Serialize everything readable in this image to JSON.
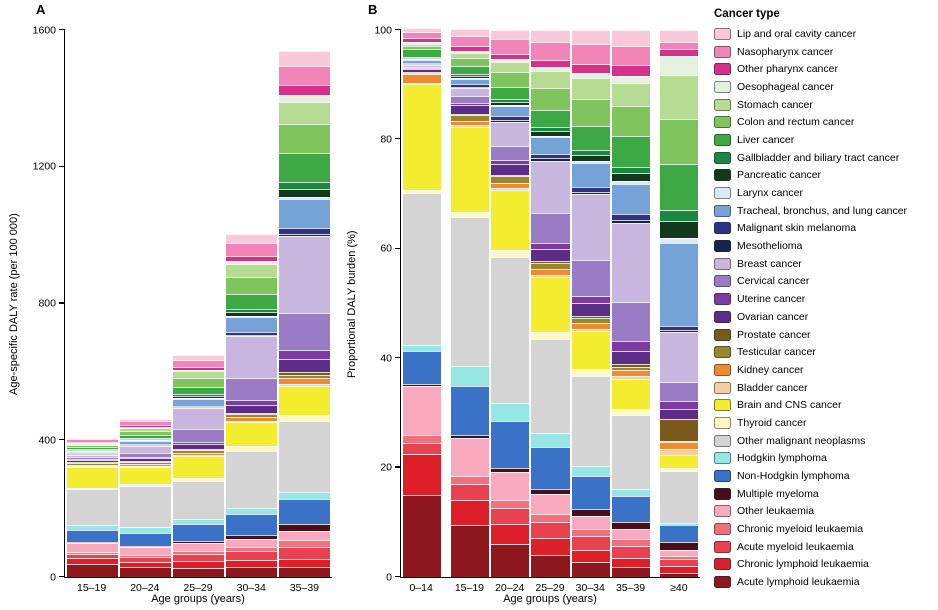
{
  "panels": {
    "a": {
      "letter": "A",
      "ylabel": "Age-specific DALY rate (per 100 000)",
      "xlabel": "Age groups (years)"
    },
    "b": {
      "letter": "B",
      "ylabel": "Proportional DALY burden (%)",
      "xlabel": "Age groups (years)"
    }
  },
  "legend": {
    "title": "Cancer type"
  },
  "chart_data": [
    {
      "type": "bar",
      "stacked": true,
      "panel": "A",
      "ylabel": "Age-specific DALY rate (per 100 000)",
      "xlabel": "Age groups (years)",
      "ylim": [
        0,
        1600
      ],
      "yticks": [
        0,
        400,
        800,
        1200,
        1600
      ],
      "col_gap": 2,
      "categories": [
        "15–19",
        "20–24",
        "25–29",
        "30–34",
        "35–39"
      ],
      "series": [
        {
          "name": "Lip and oral cavity cancer",
          "color": "#F9C9D9",
          "values": [
            5,
            7,
            14,
            26,
            43
          ]
        },
        {
          "name": "Nasopharynx cancer",
          "color": "#F285B7",
          "values": [
            7,
            12,
            21,
            36,
            56
          ]
        },
        {
          "name": "Other pharynx cancer",
          "color": "#D63089",
          "values": [
            3,
            5,
            8,
            16,
            29
          ]
        },
        {
          "name": "Oesophageal cancer",
          "color": "#E4F1DE",
          "values": [
            2,
            3,
            5,
            10,
            20
          ]
        },
        {
          "name": "Stomach cancer",
          "color": "#B6DC94",
          "values": [
            4,
            8,
            20,
            38,
            65
          ]
        },
        {
          "name": "Colon and rectum cancer",
          "color": "#7FC45C",
          "values": [
            6,
            12,
            26,
            48,
            85
          ]
        },
        {
          "name": "Liver cancer",
          "color": "#3EA844",
          "values": [
            5,
            10,
            21,
            45,
            85
          ]
        },
        {
          "name": "Gallbladder and biliary tract cancer",
          "color": "#1B8742",
          "values": [
            1,
            2,
            5,
            9,
            19
          ]
        },
        {
          "name": "Pancreatic cancer",
          "color": "#12391C",
          "values": [
            2,
            3,
            5,
            11,
            23
          ]
        },
        {
          "name": "Larynx cancer",
          "color": "#DAEAF6",
          "values": [
            0.5,
            1,
            2,
            4,
            8
          ]
        },
        {
          "name": "Tracheal, bronchus, and lung cancer",
          "color": "#76A3D7",
          "values": [
            4,
            8,
            20,
            43,
            85
          ]
        },
        {
          "name": "Malignant skin melanoma",
          "color": "#2B3488",
          "values": [
            2,
            3,
            5,
            9,
            15
          ]
        },
        {
          "name": "Mesothelioma",
          "color": "#15244E",
          "values": [
            1,
            1,
            3,
            4,
            8
          ]
        },
        {
          "name": "Breast cancer",
          "color": "#C9B6DF",
          "values": [
            6,
            21,
            62,
            121,
            224
          ]
        },
        {
          "name": "Cervical cancer",
          "color": "#9A7CC4",
          "values": [
            5,
            12,
            36,
            66,
            108
          ]
        },
        {
          "name": "Uterine cancer",
          "color": "#7A3CA3",
          "values": [
            1,
            3,
            7,
            14,
            28
          ]
        },
        {
          "name": "Ovarian cancer",
          "color": "#5B2D86",
          "values": [
            7,
            9,
            14,
            23,
            37
          ]
        },
        {
          "name": "Prostate cancer",
          "color": "#7A591D",
          "values": [
            0.5,
            1,
            2,
            4,
            9
          ]
        },
        {
          "name": "Testicular cancer",
          "color": "#9A8530",
          "values": [
            5,
            6,
            8,
            9,
            9
          ]
        },
        {
          "name": "Kidney cancer",
          "color": "#F08A2E",
          "values": [
            3,
            4,
            7,
            10,
            17
          ]
        },
        {
          "name": "Bladder cancer",
          "color": "#F8CDA0",
          "values": [
            1,
            1,
            3,
            4,
            6
          ]
        },
        {
          "name": "Brain and CNS cancer",
          "color": "#F4EC2E",
          "values": [
            60,
            51,
            65,
            71,
            85
          ]
        },
        {
          "name": "Thyroid cancer",
          "color": "#FCF9C4",
          "values": [
            4,
            6,
            8,
            12,
            17
          ]
        },
        {
          "name": "Other malignant neoplasms",
          "color": "#D4D4D4",
          "values": [
            106,
            121,
            110,
            167,
            209
          ]
        },
        {
          "name": "Hodgkin lymphoma",
          "color": "#96E7E3",
          "values": [
            14,
            15,
            16,
            18,
            19
          ]
        },
        {
          "name": "Non-Hodgkin lymphoma",
          "color": "#3A72C8",
          "values": [
            35,
            39,
            49,
            61,
            74
          ]
        },
        {
          "name": "Multiple myeloma",
          "color": "#470F1B",
          "values": [
            2,
            3,
            7,
            12,
            20
          ]
        },
        {
          "name": "Other leukaemia",
          "color": "#F8A9BE",
          "values": [
            27,
            23,
            23,
            24,
            28
          ]
        },
        {
          "name": "Chronic myeloid leukaemia",
          "color": "#F0707E",
          "values": [
            6,
            7,
            10,
            13,
            19
          ]
        },
        {
          "name": "Acute myeloid leukaemia",
          "color": "#E8414F",
          "values": [
            12,
            14,
            20,
            25,
            34
          ]
        },
        {
          "name": "Chronic lymphoid leukaemia",
          "color": "#DC1F28",
          "values": [
            18,
            16,
            20,
            22,
            26
          ]
        },
        {
          "name": "Acute lymphoid leukaemia",
          "color": "#8C171C",
          "values": [
            37,
            28,
            26,
            28,
            28
          ]
        }
      ]
    },
    {
      "type": "bar",
      "stacked": true,
      "panel": "B",
      "normalize": true,
      "separate_first": true,
      "separate_last": true,
      "ylabel": "Proportional DALY burden (%)",
      "xlabel": "Age groups (years)",
      "ylim": [
        0,
        100
      ],
      "yticks": [
        0,
        20,
        40,
        60,
        80,
        100
      ],
      "col_gap": 2,
      "categories": [
        "0–14",
        "15–19",
        "20–24",
        "25–29",
        "30–34",
        "35–39",
        "≥40"
      ],
      "series": [
        {
          "name": "Lip and oral cavity cancer",
          "color": "#F9C9D9",
          "values": [
            0.7,
            1.2,
            1.6,
            2.1,
            2.6,
            2.8,
            2.2
          ]
        },
        {
          "name": "Nasopharynx cancer",
          "color": "#F285B7",
          "values": [
            1,
            1.9,
            2.6,
            3.2,
            3.6,
            3.6,
            1.3
          ]
        },
        {
          "name": "Other pharynx cancer",
          "color": "#D63089",
          "values": [
            0.8,
            0.8,
            1,
            1.3,
            1.6,
            1.9,
            1.3
          ]
        },
        {
          "name": "Oesophageal cancer",
          "color": "#E4F1DE",
          "values": [
            0.3,
            0.4,
            0.6,
            0.8,
            1,
            1.3,
            3.5
          ]
        },
        {
          "name": "Stomach cancer",
          "color": "#B6DC94",
          "values": [
            0.5,
            1,
            1.8,
            3,
            3.8,
            4.2,
            8
          ]
        },
        {
          "name": "Colon and rectum cancer",
          "color": "#7FC45C",
          "values": [
            0.5,
            1.5,
            2.6,
            4,
            4.8,
            5.5,
            8
          ]
        },
        {
          "name": "Liver cancer",
          "color": "#3EA844",
          "values": [
            1.5,
            1.4,
            2.2,
            3.2,
            4.5,
            5.5,
            8.5
          ]
        },
        {
          "name": "Gallbladder and biliary tract cancer",
          "color": "#1B8742",
          "values": [
            0.2,
            0.3,
            0.5,
            0.7,
            0.9,
            1.2,
            2
          ]
        },
        {
          "name": "Pancreatic cancer",
          "color": "#12391C",
          "values": [
            0.2,
            0.4,
            0.6,
            0.8,
            1.1,
            1.5,
            3
          ]
        },
        {
          "name": "Larynx cancer",
          "color": "#DAEAF6",
          "values": [
            0.1,
            0.1,
            0.2,
            0.3,
            0.4,
            0.5,
            1
          ]
        },
        {
          "name": "Tracheal, bronchus, and lung cancer",
          "color": "#76A3D7",
          "values": [
            0.5,
            1,
            1.8,
            3,
            4.3,
            5.5,
            15
          ]
        },
        {
          "name": "Malignant skin melanoma",
          "color": "#2B3488",
          "values": [
            0.2,
            0.5,
            0.7,
            0.8,
            0.9,
            1,
            0.7
          ]
        },
        {
          "name": "Mesothelioma",
          "color": "#15244E",
          "values": [
            0.1,
            0.2,
            0.3,
            0.4,
            0.4,
            0.5,
            0.5
          ]
        },
        {
          "name": "Breast cancer",
          "color": "#C9B6DF",
          "values": [
            0.3,
            1.5,
            4.5,
            9.5,
            12,
            14.5,
            9
          ]
        },
        {
          "name": "Cervical cancer",
          "color": "#9A7CC4",
          "values": [
            0.2,
            1.2,
            2.5,
            5.5,
            6.5,
            7,
            3.5
          ]
        },
        {
          "name": "Uterine cancer",
          "color": "#7A3CA3",
          "values": [
            0.1,
            0.3,
            0.7,
            1,
            1.4,
            1.8,
            1.5
          ]
        },
        {
          "name": "Ovarian cancer",
          "color": "#5B2D86",
          "values": [
            0.5,
            1.7,
            2,
            2.2,
            2.3,
            2.4,
            1.8
          ]
        },
        {
          "name": "Prostate cancer",
          "color": "#7A591D",
          "values": [
            0.1,
            0.1,
            0.2,
            0.3,
            0.4,
            0.6,
            4
          ]
        },
        {
          "name": "Testicular cancer",
          "color": "#9A8530",
          "values": [
            0.3,
            1.2,
            1.3,
            1.2,
            0.9,
            0.6,
            0.1
          ]
        },
        {
          "name": "Kidney cancer",
          "color": "#F08A2E",
          "values": [
            1.5,
            0.7,
            0.8,
            1,
            1,
            1.1,
            1.2
          ]
        },
        {
          "name": "Bladder cancer",
          "color": "#F8CDA0",
          "values": [
            0.2,
            0.3,
            0.3,
            0.4,
            0.4,
            0.4,
            1.2
          ]
        },
        {
          "name": "Brain and CNS cancer",
          "color": "#F4EC2E",
          "values": [
            19.5,
            15.5,
            11,
            10,
            7,
            5.5,
            2.2
          ]
        },
        {
          "name": "Thyroid cancer",
          "color": "#FCF9C4",
          "values": [
            0.5,
            1,
            1.2,
            1.3,
            1.2,
            1.1,
            0.6
          ]
        },
        {
          "name": "Other malignant neoplasms",
          "color": "#D4D4D4",
          "values": [
            27.7,
            27.3,
            26.4,
            17,
            16.5,
            13.5,
            9.5
          ]
        },
        {
          "name": "Hodgkin lymphoma",
          "color": "#96E7E3",
          "values": [
            1.2,
            3.5,
            3.2,
            2.5,
            1.8,
            1.2,
            0.4
          ]
        },
        {
          "name": "Non-Hodgkin lymphoma",
          "color": "#3A72C8",
          "values": [
            6,
            9,
            8.5,
            7.5,
            6,
            4.8,
            3
          ]
        },
        {
          "name": "Multiple myeloma",
          "color": "#470F1B",
          "values": [
            0.3,
            0.5,
            0.7,
            1,
            1.2,
            1.3,
            1.5
          ]
        },
        {
          "name": "Other leukaemia",
          "color": "#F8A9BE",
          "values": [
            9,
            7,
            5,
            3.5,
            2.4,
            1.8,
            1
          ]
        },
        {
          "name": "Chronic myeloid leukaemia",
          "color": "#F0707E",
          "values": [
            1.5,
            1.5,
            1.5,
            1.5,
            1.3,
            1.2,
            0.7
          ]
        },
        {
          "name": "Acute myeloid leukaemia",
          "color": "#E8414F",
          "values": [
            2,
            3,
            3,
            3,
            2.5,
            2.2,
            1.2
          ]
        },
        {
          "name": "Chronic lymphoid leukaemia",
          "color": "#DC1F28",
          "values": [
            7.5,
            4.5,
            3.5,
            3,
            2.2,
            1.7,
            1.2
          ]
        },
        {
          "name": "Acute lymphoid leukaemia",
          "color": "#8C171C",
          "values": [
            15,
            9.5,
            6,
            4,
            2.8,
            1.8,
            0.8
          ]
        }
      ]
    }
  ]
}
